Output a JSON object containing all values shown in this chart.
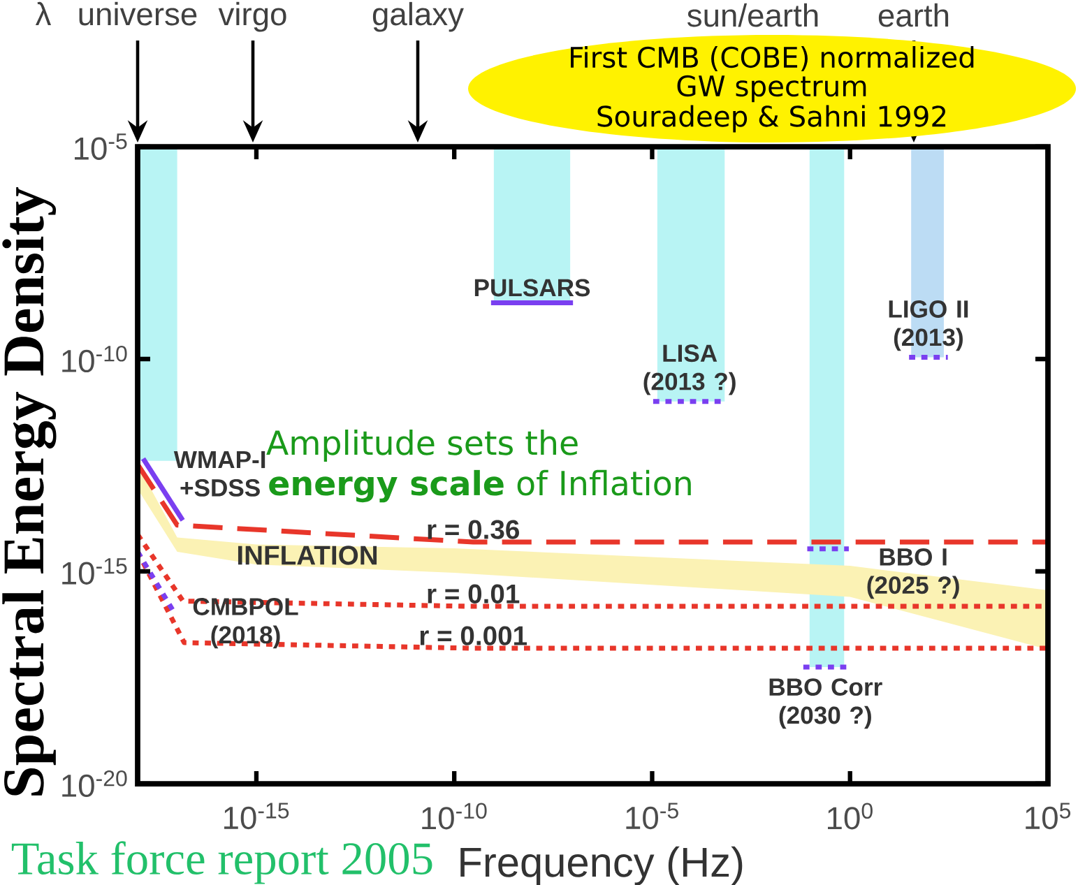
{
  "chart_data": {
    "type": "line",
    "xlabel": "Frequency (Hz)",
    "ylabel": "Spectral Energy Density",
    "log": "xy",
    "xlim": [
      1e-18,
      100000.0
    ],
    "ylim": [
      1e-20,
      1e-05
    ],
    "xticks": [
      {
        "value": 1e-15,
        "label": "10$^{-15}$"
      },
      {
        "value": 1e-10,
        "label": "10$^{-10}$"
      },
      {
        "value": 1e-05,
        "label": "10$^{-5}$"
      },
      {
        "value": 1,
        "label": "10$^{0}$"
      },
      {
        "value": 100000.0,
        "label": "10$^{5}$"
      }
    ],
    "yticks": [
      {
        "value": 1e-20,
        "label": "10$^{-20}$"
      },
      {
        "value": 1e-15,
        "label": "10$^{-15}$"
      },
      {
        "value": 1e-10,
        "label": "10$^{-10}$"
      },
      {
        "value": 1e-05,
        "label": "10$^{-5}$"
      }
    ],
    "series": [
      {
        "color": "#b8f4f4",
        "x": [
          1e-18,
          1e-17
        ],
        "values": [
          null,
          null
        ],
        "upper": [
          1e-05,
          1e-05
        ],
        "lower": [
          4e-13,
          4e-13
        ]
      },
      {
        "color": "#b8f4f4",
        "x": [
          1e-09,
          8.5e-08
        ],
        "values": [
          null,
          null
        ],
        "upper": [
          1e-05,
          1e-05
        ],
        "lower": [
          2.1e-09,
          2.1e-09
        ]
      },
      {
        "color": "#b8f4f4",
        "x": [
          1.35e-05,
          0.00068
        ],
        "values": [
          null,
          null
        ],
        "upper": [
          1e-05,
          1e-05
        ],
        "lower": [
          1e-11,
          1e-11
        ]
      },
      {
        "color": "#b8f4f4",
        "x": [
          0.095,
          0.71
        ],
        "values": [
          null,
          null
        ],
        "upper": [
          1e-05,
          1e-05
        ],
        "lower": [
          5.6e-18,
          5.6e-18
        ]
      },
      {
        "color": "#bcdcf4",
        "x": [
          35,
          234
        ],
        "values": [
          null,
          null
        ],
        "upper": [
          1e-05,
          1e-05
        ],
        "lower": [
          1.1e-10,
          1.1e-10
        ]
      },
      {
        "color": "#fbf2b4",
        "x": [
          1e-18,
          1e-17,
          1e-15,
          1e-10,
          1,
          100000.0
        ],
        "values": [
          null,
          null,
          null,
          null,
          null,
          null
        ],
        "upper": [
          3.3e-13,
          6.3e-15,
          4.3e-15,
          3.5e-15,
          1.35e-15,
          3.6e-16
        ],
        "lower": [
          8.7e-14,
          2.9e-15,
          1.45e-15,
          9.3e-16,
          2.5e-16,
          1.45e-17
        ]
      },
      {
        "name": "r = 0.36",
        "color": "#e8362a",
        "line_style": "dashed",
        "x": [
          1e-18,
          1e-17,
          3e-10,
          100000.0
        ],
        "values": [
          3.3e-13,
          1.23e-14,
          4.9e-15,
          4.9e-15
        ]
      },
      {
        "name": "r = 0.01",
        "color": "#e8362a",
        "line_style": "dotted",
        "x": [
          1e-18,
          1.4e-17,
          3e-10,
          100000.0
        ],
        "values": [
          7.4e-15,
          2e-16,
          1.5e-16,
          1.5e-16
        ]
      },
      {
        "name": "r = 0.001",
        "color": "#e8362a",
        "line_style": "dotted",
        "x": [
          1e-18,
          1.5e-17,
          3e-10,
          100000.0
        ],
        "values": [
          2.9e-15,
          2.1e-17,
          1.55e-17,
          1.55e-17
        ]
      },
      {
        "name": "WMAP-I +SDSS",
        "color": "#7a3ff0",
        "line_style": "solid",
        "x": [
          1.38e-18,
          1.38e-17
        ],
        "values": [
          4.5e-13,
          1.6e-14
        ]
      },
      {
        "name": "PULSARS",
        "color": "#7a3ff0",
        "line_style": "solid",
        "x": [
          8.5e-10,
          1e-07
        ],
        "values": [
          2.1e-09,
          2.1e-09
        ]
      },
      {
        "name": "LISA (2013 ?)",
        "color": "#7a3ff0",
        "line_style": "dotted",
        "x": [
          1.06e-05,
          0.00074
        ],
        "values": [
          1e-11,
          1e-11
        ]
      },
      {
        "name": "LIGO II (2013)",
        "color": "#7a3ff0",
        "line_style": "dotted",
        "x": [
          31,
          295
        ],
        "values": [
          1.1e-10,
          1.1e-10
        ]
      },
      {
        "name": "BBO I (2025 ?)",
        "color": "#7a3ff0",
        "line_style": "dotted",
        "x": [
          0.083,
          0.93
        ],
        "values": [
          3.4e-15,
          3.4e-15
        ]
      },
      {
        "name": "BBO Corr (2030 ?)",
        "color": "#7a3ff0",
        "line_style": "dotted",
        "x": [
          0.066,
          0.85
        ],
        "values": [
          5.6e-18,
          5.6e-18
        ]
      },
      {
        "name": "CMBPOL (2018)",
        "color": "#7a3ff0",
        "line_style": "dotted",
        "x": [
          1e-18,
          9.1e-18
        ],
        "values": [
          2.9e-15,
          9.5e-17
        ]
      }
    ],
    "annotations": [
      "λ",
      "universe",
      "virgo",
      "galaxy",
      "sun/earth",
      "earth",
      "First CMB (COBE) normalized",
      "GW spectrum",
      "Souradeep & Sahni 1992",
      "Amplitude sets the",
      "**energy scale** of Inflation",
      "Task force report 2005",
      "INFLATION"
    ]
  }
}
